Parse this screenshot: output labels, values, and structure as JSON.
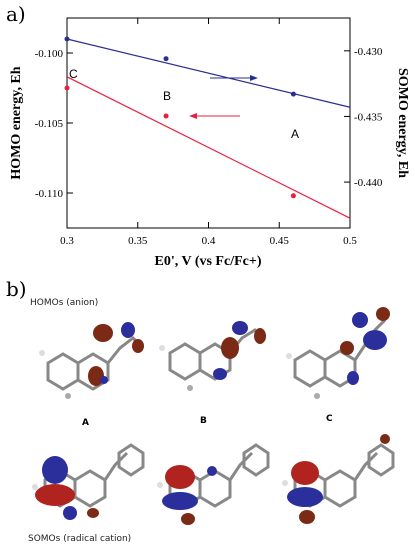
{
  "panel_a_label": "a)",
  "panel_b_label": "b)",
  "chart_data": {
    "type": "scatter",
    "xlabel": "E0', V (vs Fc/Fc+)",
    "ylabel_left": "HOMO energy, Eh",
    "ylabel_right": "SOMO energy, Eh",
    "xlim": [
      0.3,
      0.5
    ],
    "ylim_left": [
      -0.1125,
      -0.0975
    ],
    "ylim_right": [
      -0.4435,
      -0.4275
    ],
    "x_ticks": [
      "0.3",
      "0.35",
      "0.4",
      "0.45",
      "0.5"
    ],
    "y_ticks_left": [
      "-0.100",
      "-0.105",
      "-0.110"
    ],
    "y_ticks_right": [
      "-0.430",
      "-0.435",
      "-0.440"
    ],
    "series": [
      {
        "axis": "left",
        "color": "#e8203f",
        "points": [
          [
            0.3,
            -0.1025
          ],
          [
            0.37,
            -0.1045
          ],
          [
            0.46,
            -0.1102
          ]
        ],
        "fit": [
          [
            0.3,
            -0.1017
          ],
          [
            0.5,
            -0.1118
          ]
        ]
      },
      {
        "axis": "right",
        "color": "#2a2f8f",
        "points": [
          [
            0.3,
            -0.4291
          ],
          [
            0.37,
            -0.4306
          ],
          [
            0.46,
            -0.4333
          ]
        ],
        "fit": [
          [
            0.3,
            -0.4291
          ],
          [
            0.5,
            -0.4343
          ]
        ]
      }
    ],
    "point_labels": [
      "C",
      "B",
      "A"
    ]
  },
  "homo_caption": "HOMOs (anion)",
  "somo_caption": "SOMOs (radical cation)",
  "molecule_labels": [
    "A",
    "B",
    "C"
  ]
}
